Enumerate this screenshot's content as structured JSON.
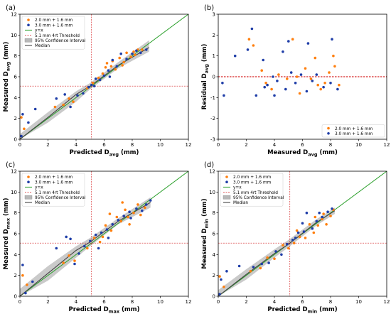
{
  "panels": [
    {
      "id": "a",
      "panel_label": "(a)",
      "xlabel_main": "Predicted D",
      "xlabel_sub": "avg",
      "xlabel_unit": " (mm)",
      "ylabel_main": "Measured D",
      "ylabel_sub": "avg",
      "ylabel_unit": " (mm)",
      "legend": [
        "2.0 mm + 1.6 mm",
        "3.0 mm + 1.6 mm",
        "y=x",
        "5.1 mm 4rt Threshold",
        "95% Confidence Interval",
        "Median"
      ]
    },
    {
      "id": "b",
      "panel_label": "(b)",
      "xlabel_main": "Measured D",
      "xlabel_sub": "avg",
      "xlabel_unit": " (mm)",
      "ylabel_main": "Residual D",
      "ylabel_sub": "avg",
      "ylabel_unit": " (mm)",
      "legend": [
        "2.0 mm + 1.6 mm",
        "3.0 mm + 1.6 mm"
      ]
    },
    {
      "id": "c",
      "panel_label": "(c)",
      "xlabel_main": "Predicted D",
      "xlabel_sub": "max",
      "xlabel_unit": " (mm)",
      "ylabel_main": "Measured D",
      "ylabel_sub": "max",
      "ylabel_unit": " (mm)",
      "legend": [
        "2.0 mm + 1.6 mm",
        "3.0 mm + 1.6 mm",
        "y=x",
        "5.1 mm 4rt Threshold",
        "95% Confidence Interval",
        "Median"
      ]
    },
    {
      "id": "d",
      "panel_label": "(d)",
      "xlabel_main": "Predicted D",
      "xlabel_sub": "min",
      "xlabel_unit": " (mm)",
      "ylabel_main": "Measured D",
      "ylabel_sub": "min",
      "ylabel_unit": " (mm)",
      "legend": [
        "2.0 mm + 1.6 mm",
        "3.0 mm + 1.6 mm",
        "y=x",
        "5.1 mm 4rt Threshold",
        "95% Confidence Interval",
        "Median"
      ]
    }
  ],
  "colors": {
    "series_2mm": "#ff7f0e",
    "series_3mm": "#1f3ea8",
    "identity_line": "#2ca02c",
    "threshold": "#d62728",
    "ci_fill": "#b8b8b8",
    "median": "#444444"
  },
  "chart_data": [
    {
      "type": "scatter",
      "panel": "a",
      "xlim": [
        0,
        12
      ],
      "ylim": [
        0,
        12
      ],
      "xticks": [
        0,
        2,
        4,
        6,
        8,
        10,
        12
      ],
      "yticks": [
        0,
        2,
        4,
        6,
        8,
        10,
        12
      ],
      "threshold": 5.1,
      "series": [
        {
          "name": "2.0 mm + 1.6 mm",
          "points": [
            [
              0.1,
              2.1
            ],
            [
              0.3,
              1.0
            ],
            [
              2.5,
              3.1
            ],
            [
              3.1,
              3.3
            ],
            [
              3.5,
              3.9
            ],
            [
              3.8,
              3.6
            ],
            [
              4.8,
              4.9
            ],
            [
              5.2,
              5.4
            ],
            [
              5.6,
              5.9
            ],
            [
              5.9,
              6.3
            ],
            [
              6.2,
              7.3
            ],
            [
              6.5,
              7.0
            ],
            [
              6.8,
              6.7
            ],
            [
              7.1,
              7.8
            ],
            [
              7.4,
              7.4
            ],
            [
              7.6,
              8.3
            ],
            [
              7.9,
              7.9
            ],
            [
              8.2,
              8.1
            ],
            [
              8.4,
              8.6
            ],
            [
              8.7,
              8.6
            ],
            [
              6.1,
              6.9
            ],
            [
              6.6,
              7.5
            ],
            [
              7.3,
              7.1
            ],
            [
              8.1,
              8.4
            ]
          ]
        },
        {
          "name": "3.0 mm + 1.6 mm",
          "points": [
            [
              0.1,
              0.3
            ],
            [
              0.2,
              2.4
            ],
            [
              0.6,
              1.6
            ],
            [
              1.1,
              2.9
            ],
            [
              2.6,
              3.9
            ],
            [
              3.2,
              4.3
            ],
            [
              3.6,
              3.1
            ],
            [
              4.1,
              4.2
            ],
            [
              4.5,
              4.4
            ],
            [
              4.9,
              5.0
            ],
            [
              5.1,
              5.2
            ],
            [
              5.4,
              5.8
            ],
            [
              5.7,
              5.7
            ],
            [
              6.0,
              6.1
            ],
            [
              6.3,
              6.6
            ],
            [
              6.6,
              7.6
            ],
            [
              6.9,
              7.0
            ],
            [
              7.2,
              8.2
            ],
            [
              7.6,
              7.7
            ],
            [
              8.0,
              8.2
            ],
            [
              8.3,
              8.5
            ],
            [
              8.6,
              8.3
            ],
            [
              9.0,
              8.6
            ],
            [
              5.3,
              5.1
            ],
            [
              6.4,
              6.0
            ]
          ]
        }
      ],
      "identity": [
        [
          0,
          0
        ],
        [
          12,
          12
        ]
      ],
      "median": [
        [
          0,
          0
        ],
        [
          2,
          2.1
        ],
        [
          4,
          4.3
        ],
        [
          5,
          5.1
        ],
        [
          7,
          7.1
        ],
        [
          9.2,
          8.8
        ]
      ],
      "ci_upper": [
        [
          0,
          0.5
        ],
        [
          2,
          2.6
        ],
        [
          4,
          4.6
        ],
        [
          5,
          5.4
        ],
        [
          7,
          7.4
        ],
        [
          9.2,
          9.5
        ]
      ],
      "ci_lower": [
        [
          0,
          0
        ],
        [
          2,
          1.6
        ],
        [
          4,
          3.6
        ],
        [
          5,
          4.8
        ],
        [
          7,
          6.8
        ],
        [
          9.2,
          8.4
        ]
      ]
    },
    {
      "type": "scatter",
      "panel": "b",
      "xlim": [
        0,
        12
      ],
      "ylim": [
        -3,
        3
      ],
      "xticks": [
        0,
        2,
        4,
        6,
        8,
        10,
        12
      ],
      "yticks": [
        -3,
        -2,
        -1,
        0,
        1,
        2,
        3
      ],
      "zero_line": 0,
      "series": [
        {
          "name": "2.0 mm + 1.6 mm",
          "points": [
            [
              2.2,
              1.8
            ],
            [
              2.5,
              1.5
            ],
            [
              3.1,
              0.3
            ],
            [
              3.4,
              -0.3
            ],
            [
              3.8,
              -0.6
            ],
            [
              4.3,
              0.1
            ],
            [
              4.9,
              -0.1
            ],
            [
              5.3,
              1.8
            ],
            [
              5.8,
              -0.8
            ],
            [
              6.2,
              0.4
            ],
            [
              6.6,
              -0.1
            ],
            [
              6.9,
              0.9
            ],
            [
              7.3,
              -0.6
            ],
            [
              7.6,
              -0.3
            ],
            [
              7.9,
              0.2
            ],
            [
              8.2,
              1.0
            ],
            [
              8.3,
              0.5
            ],
            [
              8.6,
              -0.4
            ],
            [
              5.6,
              0.0
            ],
            [
              7.1,
              -0.4
            ]
          ]
        },
        {
          "name": "3.0 mm + 1.6 mm",
          "points": [
            [
              0.3,
              -0.3
            ],
            [
              0.4,
              -0.9
            ],
            [
              1.2,
              1.0
            ],
            [
              2.1,
              1.3
            ],
            [
              2.4,
              2.3
            ],
            [
              2.7,
              -0.9
            ],
            [
              3.2,
              0.8
            ],
            [
              3.5,
              -0.4
            ],
            [
              3.9,
              0.0
            ],
            [
              4.2,
              -0.2
            ],
            [
              4.6,
              1.2
            ],
            [
              4.8,
              -0.6
            ],
            [
              5.2,
              0.2
            ],
            [
              5.5,
              -0.3
            ],
            [
              5.9,
              0.1
            ],
            [
              6.3,
              -0.7
            ],
            [
              6.7,
              -0.2
            ],
            [
              7.0,
              0.1
            ],
            [
              7.5,
              -0.5
            ],
            [
              8.0,
              -0.3
            ],
            [
              8.5,
              -0.6
            ],
            [
              8.1,
              1.8
            ],
            [
              6.4,
              1.6
            ],
            [
              5.0,
              1.7
            ],
            [
              3.3,
              -0.5
            ],
            [
              4.0,
              -0.9
            ]
          ]
        }
      ]
    },
    {
      "type": "scatter",
      "panel": "c",
      "xlim": [
        0,
        12
      ],
      "ylim": [
        0,
        12
      ],
      "xticks": [
        0,
        2,
        4,
        6,
        8,
        10,
        12
      ],
      "yticks": [
        0,
        2,
        4,
        6,
        8,
        10,
        12
      ],
      "threshold": 5.1,
      "series": [
        {
          "name": "2.0 mm + 1.6 mm",
          "points": [
            [
              0.2,
              2.0
            ],
            [
              0.5,
              1.1
            ],
            [
              3.1,
              3.2
            ],
            [
              3.5,
              3.9
            ],
            [
              3.9,
              3.4
            ],
            [
              4.8,
              4.6
            ],
            [
              5.3,
              5.6
            ],
            [
              5.7,
              5.2
            ],
            [
              6.1,
              6.8
            ],
            [
              6.5,
              6.3
            ],
            [
              6.9,
              7.6
            ],
            [
              7.2,
              7.2
            ],
            [
              7.5,
              8.3
            ],
            [
              7.8,
              6.9
            ],
            [
              8.1,
              8.0
            ],
            [
              8.4,
              8.8
            ],
            [
              8.6,
              7.8
            ],
            [
              8.9,
              8.5
            ],
            [
              7.3,
              9.0
            ],
            [
              6.4,
              7.9
            ],
            [
              5.9,
              5.7
            ],
            [
              7.7,
              7.6
            ]
          ]
        },
        {
          "name": "3.0 mm + 1.6 mm",
          "points": [
            [
              0.2,
              3.0
            ],
            [
              0.4,
              0.3
            ],
            [
              0.9,
              1.4
            ],
            [
              2.6,
              4.6
            ],
            [
              3.3,
              5.7
            ],
            [
              3.6,
              5.5
            ],
            [
              3.9,
              3.1
            ],
            [
              4.2,
              4.1
            ],
            [
              4.6,
              4.8
            ],
            [
              5.0,
              5.3
            ],
            [
              5.4,
              5.9
            ],
            [
              5.8,
              6.1
            ],
            [
              6.2,
              6.4
            ],
            [
              6.6,
              6.9
            ],
            [
              7.0,
              7.3
            ],
            [
              7.4,
              7.7
            ],
            [
              7.8,
              8.1
            ],
            [
              8.3,
              8.4
            ],
            [
              8.7,
              8.2
            ],
            [
              9.0,
              8.8
            ],
            [
              9.3,
              9.2
            ],
            [
              6.3,
              5.6
            ],
            [
              5.6,
              4.6
            ],
            [
              7.9,
              7.5
            ]
          ]
        }
      ],
      "identity": [
        [
          0,
          0
        ],
        [
          12,
          12
        ]
      ],
      "median": [
        [
          0,
          0
        ],
        [
          2,
          2.2
        ],
        [
          4,
          4.4
        ],
        [
          5,
          5.2
        ],
        [
          7,
          7.2
        ],
        [
          9.3,
          9.0
        ]
      ],
      "ci_upper": [
        [
          0,
          0.7
        ],
        [
          2,
          2.9
        ],
        [
          4,
          4.8
        ],
        [
          5,
          5.6
        ],
        [
          7,
          7.5
        ],
        [
          9.3,
          9.5
        ]
      ],
      "ci_lower": [
        [
          0,
          0
        ],
        [
          2,
          1.5
        ],
        [
          4,
          3.7
        ],
        [
          5,
          4.8
        ],
        [
          7,
          6.9
        ],
        [
          9.3,
          8.5
        ]
      ]
    },
    {
      "type": "scatter",
      "panel": "d",
      "xlim": [
        0,
        12
      ],
      "ylim": [
        0,
        12
      ],
      "xticks": [
        0,
        2,
        4,
        6,
        8,
        10,
        12
      ],
      "yticks": [
        0,
        2,
        4,
        6,
        8,
        10,
        12
      ],
      "threshold": 5.1,
      "series": [
        {
          "name": "2.0 mm + 1.6 mm",
          "points": [
            [
              0.1,
              1.9
            ],
            [
              0.4,
              0.9
            ],
            [
              2.3,
              2.4
            ],
            [
              3.0,
              2.7
            ],
            [
              3.5,
              3.7
            ],
            [
              4.0,
              3.6
            ],
            [
              4.6,
              4.9
            ],
            [
              5.0,
              4.6
            ],
            [
              5.4,
              5.1
            ],
            [
              5.8,
              5.7
            ],
            [
              6.2,
              5.6
            ],
            [
              6.5,
              6.9
            ],
            [
              6.8,
              6.1
            ],
            [
              7.1,
              6.8
            ],
            [
              7.4,
              7.4
            ],
            [
              7.7,
              6.9
            ],
            [
              8.0,
              7.7
            ],
            [
              8.2,
              8.3
            ],
            [
              5.6,
              6.3
            ],
            [
              6.9,
              7.6
            ],
            [
              7.5,
              7.9
            ]
          ]
        },
        {
          "name": "3.0 mm + 1.6 mm",
          "points": [
            [
              0.1,
              0.2
            ],
            [
              0.2,
              1.6
            ],
            [
              0.6,
              2.4
            ],
            [
              1.5,
              2.9
            ],
            [
              2.5,
              2.8
            ],
            [
              3.1,
              3.1
            ],
            [
              3.6,
              3.2
            ],
            [
              4.1,
              4.3
            ],
            [
              4.5,
              4.0
            ],
            [
              4.9,
              5.0
            ],
            [
              5.3,
              5.4
            ],
            [
              5.7,
              6.1
            ],
            [
              6.0,
              7.0
            ],
            [
              6.3,
              8.0
            ],
            [
              6.7,
              6.5
            ],
            [
              7.0,
              7.2
            ],
            [
              7.4,
              7.6
            ],
            [
              7.8,
              8.1
            ],
            [
              8.1,
              8.4
            ],
            [
              6.1,
              6.2
            ],
            [
              5.5,
              5.6
            ],
            [
              7.2,
              8.0
            ]
          ]
        }
      ],
      "identity": [
        [
          0,
          0
        ],
        [
          12,
          12
        ]
      ],
      "median": [
        [
          0,
          0
        ],
        [
          2,
          2.1
        ],
        [
          4,
          4.1
        ],
        [
          5,
          5.0
        ],
        [
          7,
          7.1
        ],
        [
          8.3,
          8.2
        ]
      ],
      "ci_upper": [
        [
          0,
          0.6
        ],
        [
          2,
          2.6
        ],
        [
          4,
          4.5
        ],
        [
          5,
          5.4
        ],
        [
          7,
          7.4
        ],
        [
          8.3,
          8.5
        ]
      ],
      "ci_lower": [
        [
          0,
          0
        ],
        [
          2,
          1.6
        ],
        [
          4,
          3.7
        ],
        [
          5,
          4.7
        ],
        [
          7,
          6.8
        ],
        [
          8.3,
          7.9
        ]
      ]
    }
  ]
}
